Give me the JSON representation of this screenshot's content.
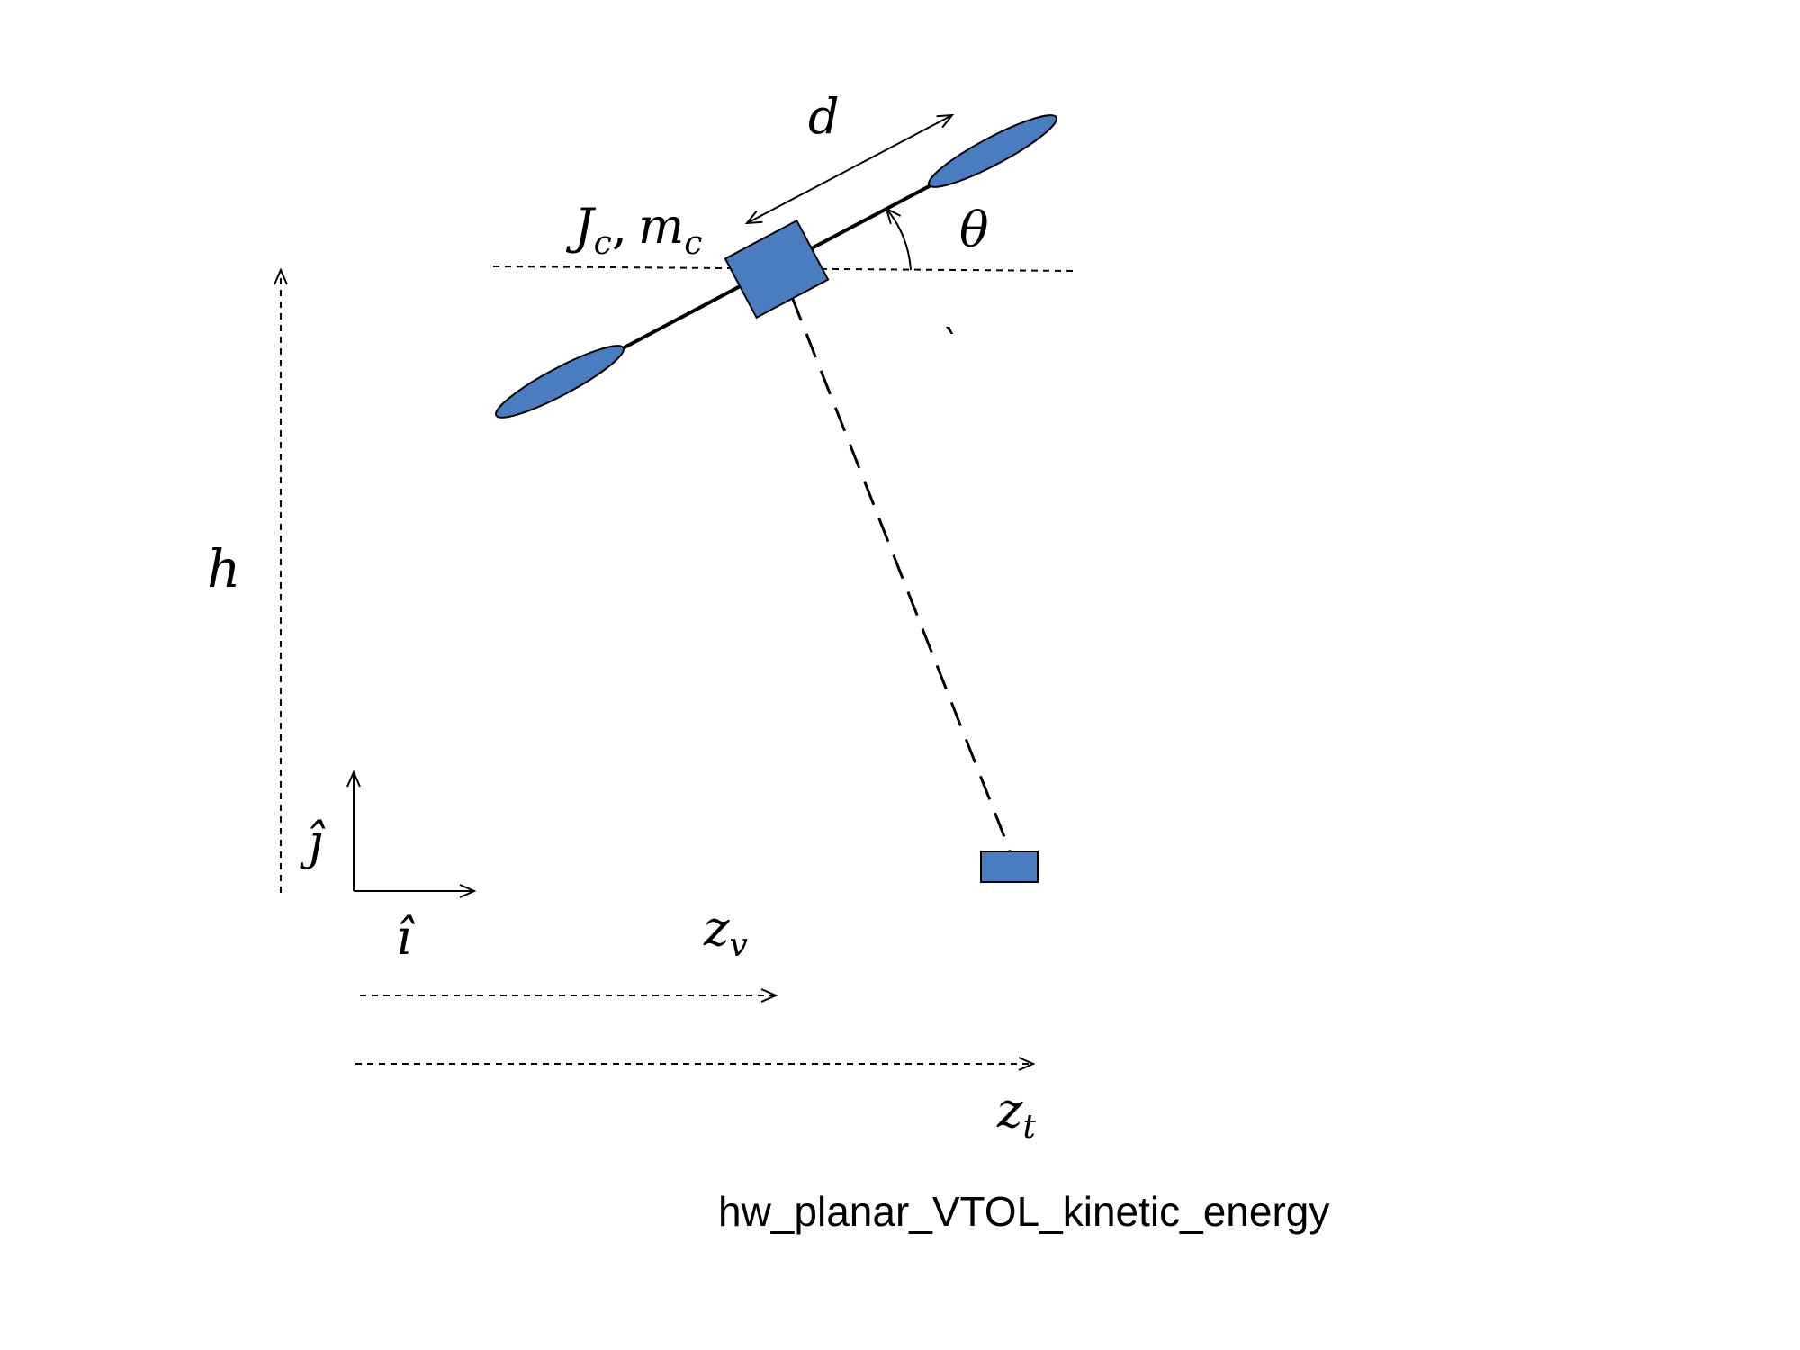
{
  "labels": {
    "d": "d",
    "Jc": "J",
    "Jc_sub": "c",
    "comma": ",",
    "mc": "m",
    "mc_sub": "c",
    "theta": "θ",
    "h": "h",
    "j_hat": "ĵ",
    "i_hat": "î",
    "zv": "z",
    "zv_sub": "v",
    "zt": "z",
    "zt_sub": "t",
    "tick": "`"
  },
  "caption": "hw_planar_VTOL_kinetic_energy",
  "colors": {
    "body": "#4a7dbf",
    "line": "#000000",
    "background": "#ffffff"
  }
}
